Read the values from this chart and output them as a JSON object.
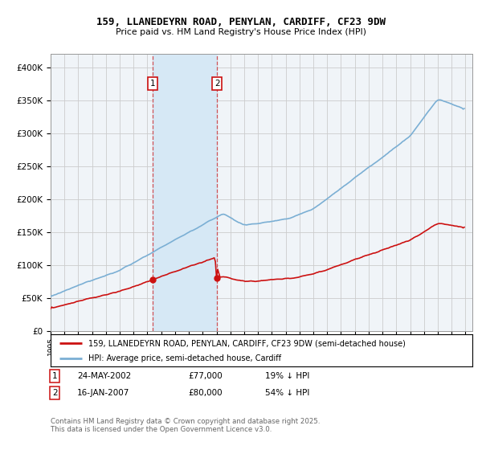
{
  "title1": "159, LLANEDEYRN ROAD, PENYLAN, CARDIFF, CF23 9DW",
  "title2": "Price paid vs. HM Land Registry's House Price Index (HPI)",
  "legend_line1": "159, LLANEDEYRN ROAD, PENYLAN, CARDIFF, CF23 9DW (semi-detached house)",
  "legend_line2": "HPI: Average price, semi-detached house, Cardiff",
  "footer": "Contains HM Land Registry data © Crown copyright and database right 2025.\nThis data is licensed under the Open Government Licence v3.0.",
  "sale1_date": "24-MAY-2002",
  "sale1_price": "£77,000",
  "sale1_hpi": "19% ↓ HPI",
  "sale2_date": "16-JAN-2007",
  "sale2_price": "£80,000",
  "sale2_hpi": "54% ↓ HPI",
  "sale1_x": 2002.38,
  "sale1_y": 77000,
  "sale2_x": 2007.04,
  "sale2_y": 80000,
  "hpi_color": "#7bafd4",
  "price_color": "#cc1111",
  "vertical1_x": 2002.38,
  "vertical2_x": 2007.04,
  "ylim": [
    0,
    420000
  ],
  "xlim": [
    1995.0,
    2025.5
  ],
  "background_color": "#ffffff",
  "plot_bg_color": "#f0f4f8",
  "grid_color": "#cccccc",
  "highlight_region_color": "#d6e8f5"
}
